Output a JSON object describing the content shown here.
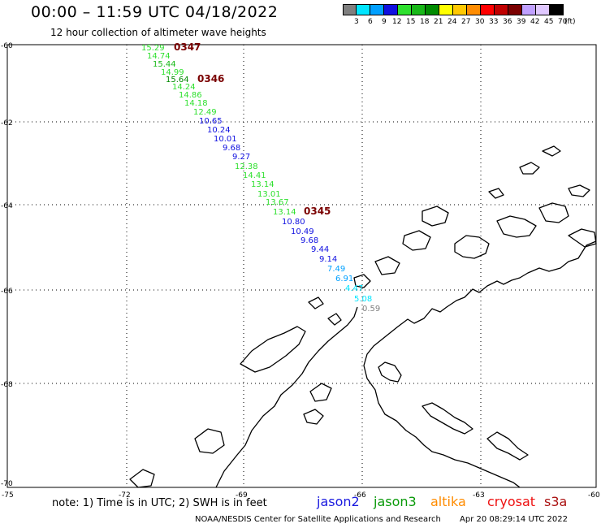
{
  "header": {
    "title": "00:00 – 11:59 UTC 04/18/2022",
    "subtitle": "12 hour collection of altimeter wave heights"
  },
  "legend": {
    "swatches": [
      {
        "color": "#7f7f7f",
        "label": "3"
      },
      {
        "color": "#00e5ff",
        "label": "6"
      },
      {
        "color": "#00a0ff",
        "label": "9"
      },
      {
        "color": "#1010e0",
        "label": "12"
      },
      {
        "color": "#2ee02e",
        "label": "15"
      },
      {
        "color": "#18b818",
        "label": "18"
      },
      {
        "color": "#008a00",
        "label": "21"
      },
      {
        "color": "#ffff00",
        "label": "24"
      },
      {
        "color": "#ffc800",
        "label": "27"
      },
      {
        "color": "#ff8c00",
        "label": "30"
      },
      {
        "color": "#ff0000",
        "label": "33"
      },
      {
        "color": "#c00000",
        "label": "36"
      },
      {
        "color": "#7a0000",
        "label": "39"
      },
      {
        "color": "#c0a0ff",
        "label": "42"
      },
      {
        "color": "#e0c8ff",
        "label": "45"
      },
      {
        "color": "#000000",
        "label": "70"
      }
    ],
    "unit": "(ft)"
  },
  "axes": {
    "lat_labels": [
      "-60",
      "-62",
      "-64",
      "-66",
      "-68",
      "-70"
    ],
    "lon_labels": [
      "-75",
      "-72",
      "-69",
      "-66",
      "-63",
      "-60"
    ]
  },
  "track": {
    "segments": [
      {
        "label": "0347",
        "values": [
          "15.29",
          "14.74",
          "15.44",
          "14.99",
          "15.64"
        ]
      },
      {
        "label": "0346",
        "values": [
          "14.24",
          "14.86",
          "14.18",
          "12.49",
          "10.65",
          "10.24",
          "10.01",
          "9.68",
          "9.27",
          "12.38",
          "14.41",
          "13.14",
          "13.01",
          "13.67",
          "13.14"
        ]
      },
      {
        "label": "0345",
        "values": [
          "10.80",
          "10.49",
          "9.68",
          "9.44",
          "9.14",
          "7.49",
          "6.91",
          "4.47",
          "5.08",
          "0.59"
        ]
      }
    ]
  },
  "footer": {
    "note": "note:  1) Time is in UTC;  2) SWH is in feet",
    "satellites": [
      {
        "name": "jason2",
        "color": "#1a1adf"
      },
      {
        "name": "jason3",
        "color": "#0a9a0a"
      },
      {
        "name": "altika",
        "color": "#ff8c00"
      },
      {
        "name": "cryosat",
        "color": "#ee1111"
      },
      {
        "name": "s3a",
        "color": "#aa1111"
      }
    ],
    "credit": "NOAA/NESDIS Center for Satellite Applications and Research",
    "timestamp": "Apr 20 08:29:14 UTC 2022"
  }
}
